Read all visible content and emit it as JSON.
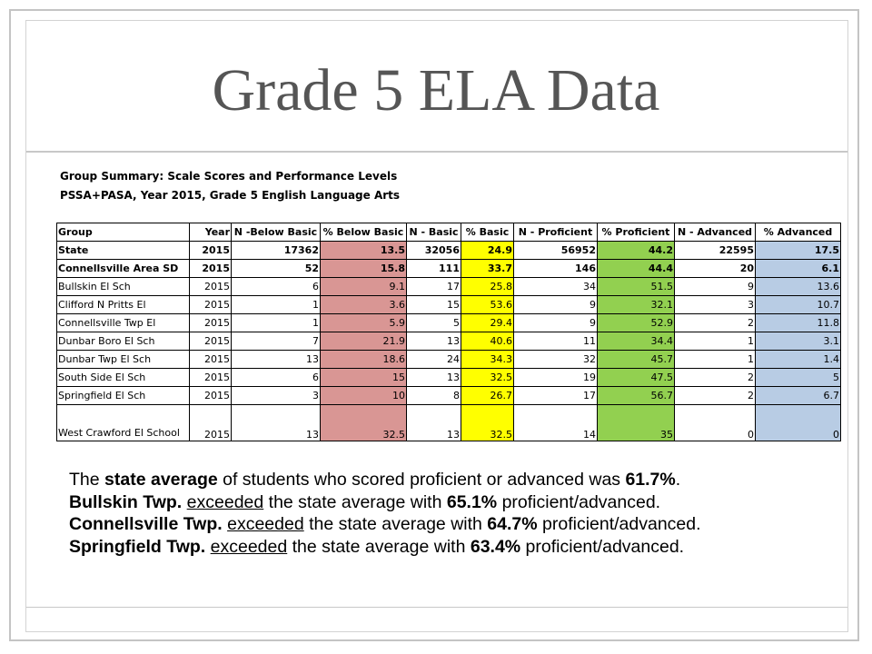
{
  "title": "Grade 5 ELA Data",
  "caption_line1": "Group Summary: Scale Scores and Performance Levels",
  "caption_line2": "PSSA+PASA, Year 2015, Grade 5 English Language Arts",
  "colors": {
    "below_basic": "#d99694",
    "basic": "#ffff00",
    "proficient": "#92d050",
    "advanced": "#b8cce4"
  },
  "table": {
    "headers": [
      "Group",
      "Year",
      "N -Below Basic",
      "% Below Basic",
      "N - Basic",
      "% Basic",
      "N - Proficient",
      "% Proficient",
      "N - Advanced",
      "% Advanced"
    ],
    "rows": [
      [
        "State",
        "2015",
        "17362",
        "13.5",
        "32056",
        "24.9",
        "56952",
        "44.2",
        "22595",
        "17.5"
      ],
      [
        "Connellsville Area SD",
        "2015",
        "52",
        "15.8",
        "111",
        "33.7",
        "146",
        "44.4",
        "20",
        "6.1"
      ],
      [
        "Bullskin El Sch",
        "2015",
        "6",
        "9.1",
        "17",
        "25.8",
        "34",
        "51.5",
        "9",
        "13.6"
      ],
      [
        "Clifford N Pritts El",
        "2015",
        "1",
        "3.6",
        "15",
        "53.6",
        "9",
        "32.1",
        "3",
        "10.7"
      ],
      [
        "Connellsville Twp El",
        "2015",
        "1",
        "5.9",
        "5",
        "29.4",
        "9",
        "52.9",
        "2",
        "11.8"
      ],
      [
        "Dunbar Boro El Sch",
        "2015",
        "7",
        "21.9",
        "13",
        "40.6",
        "11",
        "34.4",
        "1",
        "3.1"
      ],
      [
        "Dunbar Twp El Sch",
        "2015",
        "13",
        "18.6",
        "24",
        "34.3",
        "32",
        "45.7",
        "1",
        "1.4"
      ],
      [
        "South Side El Sch",
        "2015",
        "6",
        "15",
        "13",
        "32.5",
        "19",
        "47.5",
        "2",
        "5"
      ],
      [
        "Springfield El Sch",
        "2015",
        "3",
        "10",
        "8",
        "26.7",
        "17",
        "56.7",
        "2",
        "6.7"
      ],
      [
        "West Crawford El School",
        "2015",
        "13",
        "32.5",
        "13",
        "32.5",
        "14",
        "35",
        "0",
        "0"
      ]
    ]
  },
  "summary": {
    "line1": {
      "a": "The ",
      "b": "state average",
      "c": " of students who scored proficient or advanced was ",
      "d": "61.7%",
      "e": "."
    },
    "line2": {
      "a": "Bullskin Twp.",
      "b": " ",
      "c": "exceeded",
      "d": " the state average with ",
      "e": "65.1%",
      "f": " proficient/advanced."
    },
    "line3": {
      "a": "Connellsville Twp.",
      "b": " ",
      "c": "exceeded",
      "d": " the state average with ",
      "e": "64.7%",
      "f": " proficient/advanced."
    },
    "line4": {
      "a": "Springfield Twp.",
      "b": " ",
      "c": "exceeded",
      "d": " the state average with ",
      "e": "63.4%",
      "f": " proficient/advanced."
    }
  }
}
